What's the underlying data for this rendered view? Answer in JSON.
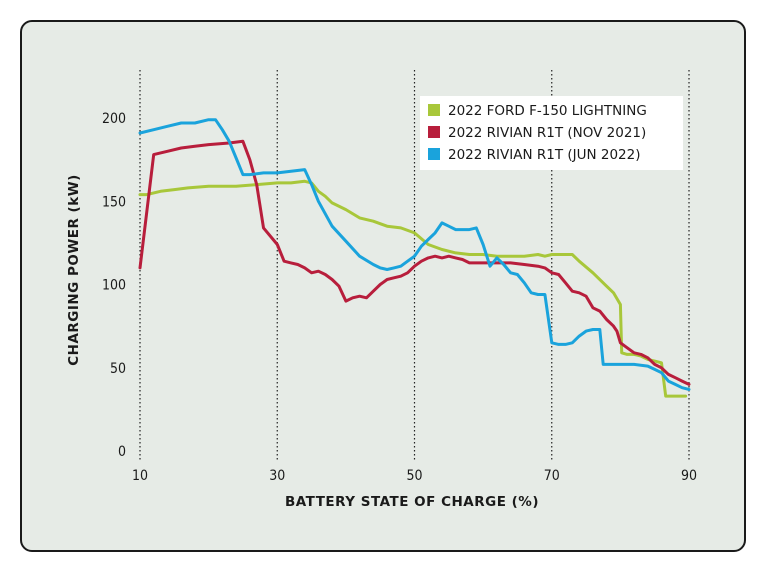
{
  "chart_data": {
    "type": "line",
    "xlabel": "BATTERY STATE OF CHARGE (%)",
    "ylabel": "CHARGING POWER (kW)",
    "xlim": [
      10,
      90
    ],
    "ylim": [
      0,
      200
    ],
    "x_ticks": [
      10,
      30,
      50,
      70,
      90
    ],
    "y_ticks": [
      0,
      50,
      100,
      150,
      200
    ],
    "grid": "vertical dotted lines at x ticks",
    "legend_position": "top-right",
    "series": [
      {
        "name": "2022 FORD F-150 LIGHTNING",
        "color": "#a8c73a",
        "points": [
          [
            10,
            154
          ],
          [
            11,
            154
          ],
          [
            13,
            156
          ],
          [
            15,
            157
          ],
          [
            17,
            158
          ],
          [
            20,
            159
          ],
          [
            24,
            159
          ],
          [
            27,
            160
          ],
          [
            30,
            161
          ],
          [
            32,
            161
          ],
          [
            34,
            162
          ],
          [
            35,
            161
          ],
          [
            36,
            156
          ],
          [
            37,
            153
          ],
          [
            38,
            149
          ],
          [
            40,
            145
          ],
          [
            42,
            140
          ],
          [
            44,
            138
          ],
          [
            46,
            135
          ],
          [
            48,
            134
          ],
          [
            50,
            131
          ],
          [
            52,
            124
          ],
          [
            54,
            121
          ],
          [
            56,
            119
          ],
          [
            58,
            118
          ],
          [
            60,
            118
          ],
          [
            62,
            117
          ],
          [
            64,
            117
          ],
          [
            66,
            117
          ],
          [
            68,
            118
          ],
          [
            69,
            117
          ],
          [
            70,
            118
          ],
          [
            72,
            118
          ],
          [
            73,
            118
          ],
          [
            74,
            114
          ],
          [
            76,
            107
          ],
          [
            78,
            99
          ],
          [
            79,
            95
          ],
          [
            80,
            88
          ],
          [
            80.2,
            59
          ],
          [
            81,
            58
          ],
          [
            82,
            58
          ],
          [
            83,
            57
          ],
          [
            84,
            55
          ],
          [
            85,
            54
          ],
          [
            86,
            53
          ],
          [
            86.6,
            33
          ],
          [
            88,
            33
          ],
          [
            89.5,
            33
          ]
        ]
      },
      {
        "name": "2022 RIVIAN R1T (NOV 2021)",
        "color": "#b81e3c",
        "points": [
          [
            10,
            110
          ],
          [
            12,
            178
          ],
          [
            14,
            180
          ],
          [
            16,
            182
          ],
          [
            18,
            183
          ],
          [
            20,
            184
          ],
          [
            23,
            185
          ],
          [
            25,
            186
          ],
          [
            26,
            175
          ],
          [
            27,
            160
          ],
          [
            28,
            134
          ],
          [
            30,
            124
          ],
          [
            31,
            114
          ],
          [
            32,
            113
          ],
          [
            33,
            112
          ],
          [
            34,
            110
          ],
          [
            35,
            107
          ],
          [
            36,
            108
          ],
          [
            37,
            106
          ],
          [
            38,
            103
          ],
          [
            39,
            99
          ],
          [
            40,
            90
          ],
          [
            41,
            92
          ],
          [
            42,
            93
          ],
          [
            43,
            92
          ],
          [
            44,
            96
          ],
          [
            45,
            100
          ],
          [
            46,
            103
          ],
          [
            47,
            104
          ],
          [
            48,
            105
          ],
          [
            49,
            107
          ],
          [
            50,
            111
          ],
          [
            51,
            114
          ],
          [
            52,
            116
          ],
          [
            53,
            117
          ],
          [
            54,
            116
          ],
          [
            55,
            117
          ],
          [
            56,
            116
          ],
          [
            57,
            115
          ],
          [
            58,
            113
          ],
          [
            60,
            113
          ],
          [
            62,
            113
          ],
          [
            64,
            113
          ],
          [
            66,
            112
          ],
          [
            68,
            111
          ],
          [
            69,
            110
          ],
          [
            70,
            107
          ],
          [
            71,
            106
          ],
          [
            72,
            101
          ],
          [
            73,
            96
          ],
          [
            74,
            95
          ],
          [
            75,
            93
          ],
          [
            76,
            86
          ],
          [
            77,
            84
          ],
          [
            78,
            79
          ],
          [
            79,
            75
          ],
          [
            79.5,
            72
          ],
          [
            80,
            65
          ],
          [
            81,
            62
          ],
          [
            82,
            59
          ],
          [
            83,
            58
          ],
          [
            84,
            56
          ],
          [
            85,
            52
          ],
          [
            86,
            50
          ],
          [
            87,
            46
          ],
          [
            88,
            44
          ],
          [
            89,
            42
          ],
          [
            90,
            40
          ]
        ]
      },
      {
        "name": "2022 RIVIAN R1T (JUN 2022)",
        "color": "#1aa3dc",
        "points": [
          [
            10,
            191
          ],
          [
            12,
            193
          ],
          [
            14,
            195
          ],
          [
            16,
            197
          ],
          [
            18,
            197
          ],
          [
            20,
            199
          ],
          [
            21,
            199
          ],
          [
            22,
            193
          ],
          [
            23,
            186
          ],
          [
            24,
            176
          ],
          [
            25,
            166
          ],
          [
            26,
            166
          ],
          [
            28,
            167
          ],
          [
            30,
            167
          ],
          [
            32,
            168
          ],
          [
            34,
            169
          ],
          [
            35,
            160
          ],
          [
            36,
            150
          ],
          [
            38,
            135
          ],
          [
            40,
            126
          ],
          [
            42,
            117
          ],
          [
            44,
            112
          ],
          [
            45,
            110
          ],
          [
            46,
            109
          ],
          [
            47,
            110
          ],
          [
            48,
            111
          ],
          [
            49,
            114
          ],
          [
            50,
            117
          ],
          [
            51,
            123
          ],
          [
            52,
            127
          ],
          [
            53,
            131
          ],
          [
            54,
            137
          ],
          [
            55,
            135
          ],
          [
            56,
            133
          ],
          [
            58,
            133
          ],
          [
            59,
            134
          ],
          [
            60,
            124
          ],
          [
            61,
            111
          ],
          [
            62,
            116
          ],
          [
            63,
            112
          ],
          [
            64,
            107
          ],
          [
            65,
            106
          ],
          [
            66,
            101
          ],
          [
            67,
            95
          ],
          [
            68,
            94
          ],
          [
            69,
            94
          ],
          [
            70,
            65
          ],
          [
            71,
            64
          ],
          [
            72,
            64
          ],
          [
            73,
            65
          ],
          [
            74,
            69
          ],
          [
            75,
            72
          ],
          [
            76,
            73
          ],
          [
            77,
            73
          ],
          [
            77.5,
            52
          ],
          [
            78,
            52
          ],
          [
            80,
            52
          ],
          [
            82,
            52
          ],
          [
            84,
            51
          ],
          [
            85,
            49
          ],
          [
            86,
            47
          ],
          [
            87,
            42
          ],
          [
            88,
            40
          ],
          [
            89,
            38
          ],
          [
            90,
            37
          ]
        ]
      }
    ]
  }
}
